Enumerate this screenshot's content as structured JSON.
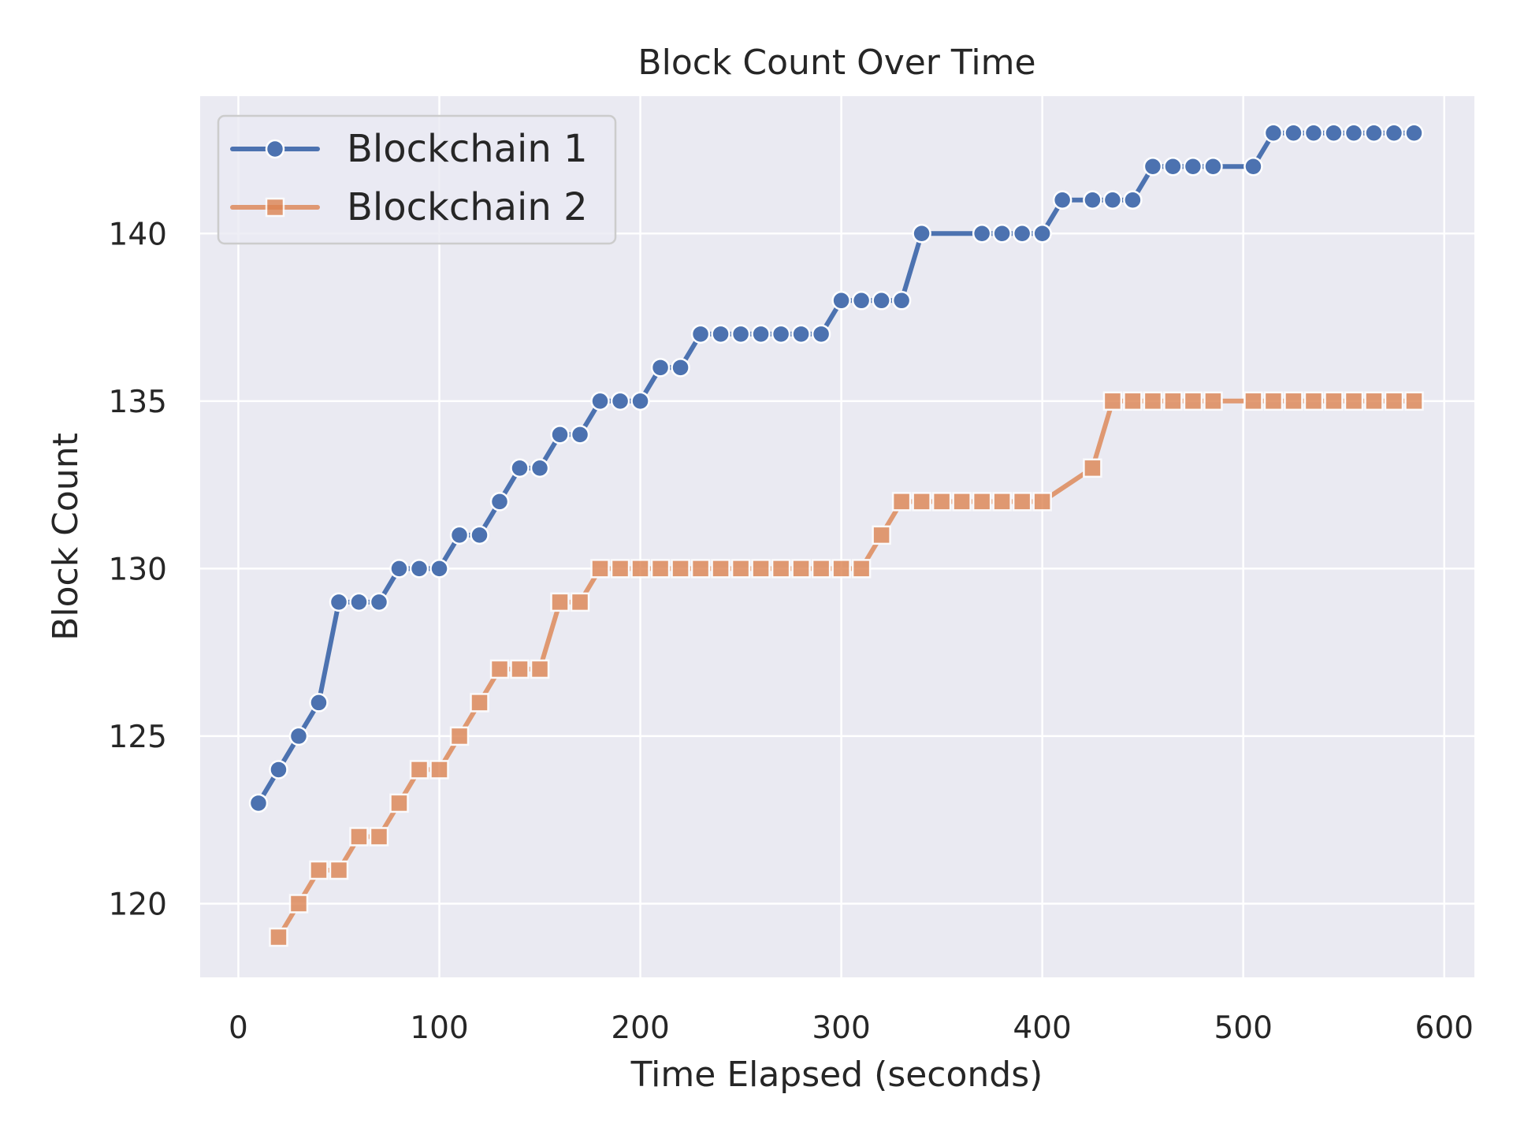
{
  "chart_data": {
    "type": "line",
    "title": "Block Count Over Time",
    "xlabel": "Time Elapsed (seconds)",
    "ylabel": "Block Count",
    "xlim": [
      -19,
      615
    ],
    "ylim": [
      117.8,
      144.1
    ],
    "xticks": [
      0,
      100,
      200,
      300,
      400,
      500,
      600
    ],
    "yticks": [
      120,
      125,
      130,
      135,
      140
    ],
    "grid": true,
    "legend_position": "top-left",
    "series": [
      {
        "name": "Blockchain 1",
        "color": "#4c72b0",
        "marker": "circle",
        "points": [
          [
            10,
            123
          ],
          [
            20,
            124
          ],
          [
            30,
            125
          ],
          [
            40,
            126
          ],
          [
            50,
            129
          ],
          [
            60,
            129
          ],
          [
            70,
            129
          ],
          [
            80,
            130
          ],
          [
            90,
            130
          ],
          [
            100,
            130
          ],
          [
            110,
            131
          ],
          [
            120,
            131
          ],
          [
            130,
            132
          ],
          [
            140,
            133
          ],
          [
            150,
            133
          ],
          [
            160,
            134
          ],
          [
            170,
            134
          ],
          [
            180,
            135
          ],
          [
            190,
            135
          ],
          [
            200,
            135
          ],
          [
            210,
            136
          ],
          [
            220,
            136
          ],
          [
            230,
            137
          ],
          [
            240,
            137
          ],
          [
            250,
            137
          ],
          [
            260,
            137
          ],
          [
            270,
            137
          ],
          [
            280,
            137
          ],
          [
            290,
            137
          ],
          [
            300,
            138
          ],
          [
            310,
            138
          ],
          [
            320,
            138
          ],
          [
            330,
            138
          ],
          [
            340,
            140
          ],
          [
            370,
            140
          ],
          [
            380,
            140
          ],
          [
            390,
            140
          ],
          [
            400,
            140
          ],
          [
            410,
            141
          ],
          [
            425,
            141
          ],
          [
            435,
            141
          ],
          [
            445,
            141
          ],
          [
            455,
            142
          ],
          [
            465,
            142
          ],
          [
            475,
            142
          ],
          [
            485,
            142
          ],
          [
            505,
            142
          ],
          [
            515,
            143
          ],
          [
            525,
            143
          ],
          [
            535,
            143
          ],
          [
            545,
            143
          ],
          [
            555,
            143
          ],
          [
            565,
            143
          ],
          [
            575,
            143
          ],
          [
            585,
            143
          ]
        ]
      },
      {
        "name": "Blockchain 2",
        "color": "#dd8452",
        "marker": "square",
        "points": [
          [
            20,
            119
          ],
          [
            30,
            120
          ],
          [
            40,
            121
          ],
          [
            50,
            121
          ],
          [
            60,
            122
          ],
          [
            70,
            122
          ],
          [
            80,
            123
          ],
          [
            90,
            124
          ],
          [
            100,
            124
          ],
          [
            110,
            125
          ],
          [
            120,
            126
          ],
          [
            130,
            127
          ],
          [
            140,
            127
          ],
          [
            150,
            127
          ],
          [
            160,
            129
          ],
          [
            170,
            129
          ],
          [
            180,
            130
          ],
          [
            190,
            130
          ],
          [
            200,
            130
          ],
          [
            210,
            130
          ],
          [
            220,
            130
          ],
          [
            230,
            130
          ],
          [
            240,
            130
          ],
          [
            250,
            130
          ],
          [
            260,
            130
          ],
          [
            270,
            130
          ],
          [
            280,
            130
          ],
          [
            290,
            130
          ],
          [
            300,
            130
          ],
          [
            310,
            130
          ],
          [
            320,
            131
          ],
          [
            330,
            132
          ],
          [
            340,
            132
          ],
          [
            350,
            132
          ],
          [
            360,
            132
          ],
          [
            370,
            132
          ],
          [
            380,
            132
          ],
          [
            390,
            132
          ],
          [
            400,
            132
          ],
          [
            425,
            133
          ],
          [
            435,
            135
          ],
          [
            445,
            135
          ],
          [
            455,
            135
          ],
          [
            465,
            135
          ],
          [
            475,
            135
          ],
          [
            485,
            135
          ],
          [
            505,
            135
          ],
          [
            515,
            135
          ],
          [
            525,
            135
          ],
          [
            535,
            135
          ],
          [
            545,
            135
          ],
          [
            555,
            135
          ],
          [
            565,
            135
          ],
          [
            575,
            135
          ],
          [
            585,
            135
          ]
        ]
      }
    ]
  }
}
